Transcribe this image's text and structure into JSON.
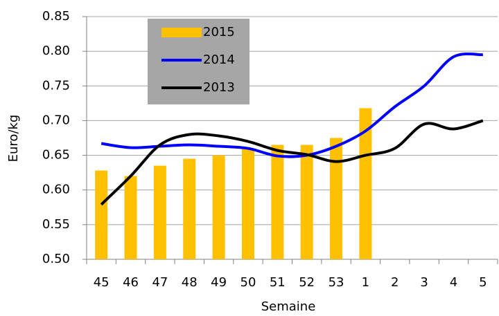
{
  "chart_data": {
    "type": "bar_line",
    "y_label": "Euro/kg",
    "x_label": "Semaine",
    "categories": [
      "45",
      "46",
      "47",
      "48",
      "49",
      "50",
      "51",
      "52",
      "53",
      "1",
      "2",
      "3",
      "4",
      "5"
    ],
    "series": [
      {
        "name": "2015",
        "type": "bar",
        "color": "#ffc000",
        "values": [
          0.628,
          0.62,
          0.635,
          0.645,
          0.65,
          0.66,
          0.665,
          0.665,
          0.675,
          0.718,
          null,
          null,
          null,
          null
        ]
      },
      {
        "name": "2014",
        "type": "line",
        "color": "#0000ff",
        "values": [
          0.667,
          0.661,
          0.663,
          0.665,
          0.663,
          0.66,
          0.649,
          0.65,
          0.663,
          0.685,
          0.72,
          0.75,
          0.792,
          0.795
        ]
      },
      {
        "name": "2013",
        "type": "line",
        "color": "#000000",
        "values": [
          0.579,
          0.62,
          0.665,
          0.68,
          0.678,
          0.67,
          0.657,
          0.651,
          0.641,
          0.65,
          0.66,
          0.695,
          0.688,
          0.7
        ]
      }
    ],
    "ylim": [
      0.5,
      0.85
    ],
    "yticks": [
      {
        "value": 0.5,
        "label": "0.50"
      },
      {
        "value": 0.55,
        "label": "0.55"
      },
      {
        "value": 0.6,
        "label": "0.60"
      },
      {
        "value": 0.65,
        "label": "0.65"
      },
      {
        "value": 0.7,
        "label": "0.70"
      },
      {
        "value": 0.75,
        "label": "0.75"
      },
      {
        "value": 0.8,
        "label": "0.80"
      },
      {
        "value": 0.85,
        "label": "0.85"
      }
    ],
    "grid": true,
    "legend": "upper left",
    "legend_background": "#a6a6a6"
  }
}
